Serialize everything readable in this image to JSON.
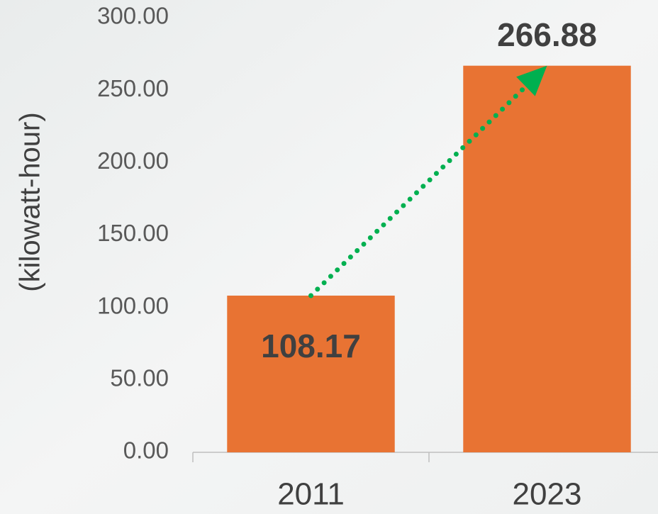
{
  "chart_data": {
    "type": "bar",
    "y_label": "(kilowatt-hour)",
    "categories": [
      "2011",
      "2023"
    ],
    "values": [
      108.17,
      266.88
    ],
    "color": "#e87333",
    "ylim": [
      0,
      300
    ],
    "yticks": [
      {
        "value": 0,
        "label": "0.00"
      },
      {
        "value": 50,
        "label": "50.00"
      },
      {
        "value": 100,
        "label": "100.00"
      },
      {
        "value": 150,
        "label": "150.00"
      },
      {
        "value": 200,
        "label": "200.00"
      },
      {
        "value": 250,
        "label": "250.00"
      },
      {
        "value": 300,
        "label": "300.00"
      }
    ],
    "grid": false
  }
}
